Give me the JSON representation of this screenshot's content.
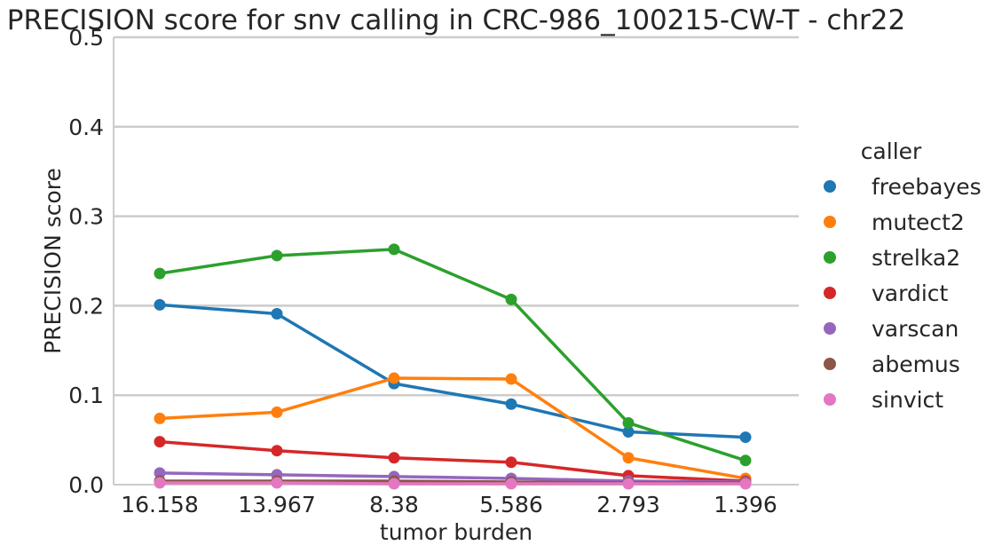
{
  "chart_data": {
    "type": "line",
    "title": "PRECISION score for snv calling in CRC-986_100215-CW-T - chr22",
    "xlabel": "tumor burden",
    "ylabel": "PRECISION score",
    "categories": [
      "16.158",
      "13.967",
      "8.38",
      "5.586",
      "2.793",
      "1.396"
    ],
    "ylim": [
      0,
      0.5
    ],
    "yticks": [
      "0.0",
      "0.1",
      "0.2",
      "0.3",
      "0.4",
      "0.5"
    ],
    "grid": "horizontal",
    "legend": {
      "title": "caller",
      "placement": "right"
    },
    "series": [
      {
        "name": "freebayes",
        "color": "#1f77b4",
        "values": [
          0.201,
          0.191,
          0.113,
          0.09,
          0.059,
          0.053
        ]
      },
      {
        "name": "mutect2",
        "color": "#ff7f0e",
        "values": [
          0.074,
          0.081,
          0.119,
          0.118,
          0.03,
          0.007
        ]
      },
      {
        "name": "strelka2",
        "color": "#2ca02c",
        "values": [
          0.236,
          0.256,
          0.263,
          0.207,
          0.069,
          0.027
        ]
      },
      {
        "name": "vardict",
        "color": "#d62728",
        "values": [
          0.048,
          0.038,
          0.03,
          0.025,
          0.01,
          0.004
        ]
      },
      {
        "name": "varscan",
        "color": "#9467bd",
        "values": [
          0.013,
          0.011,
          0.009,
          0.007,
          0.004,
          0.003
        ]
      },
      {
        "name": "abemus",
        "color": "#8c564b",
        "values": [
          0.004,
          0.004,
          0.004,
          0.003,
          0.002,
          0.002
        ]
      },
      {
        "name": "sinvict",
        "color": "#e377c2",
        "values": [
          0.002,
          0.002,
          0.001,
          0.001,
          0.001,
          0.001
        ]
      }
    ]
  }
}
